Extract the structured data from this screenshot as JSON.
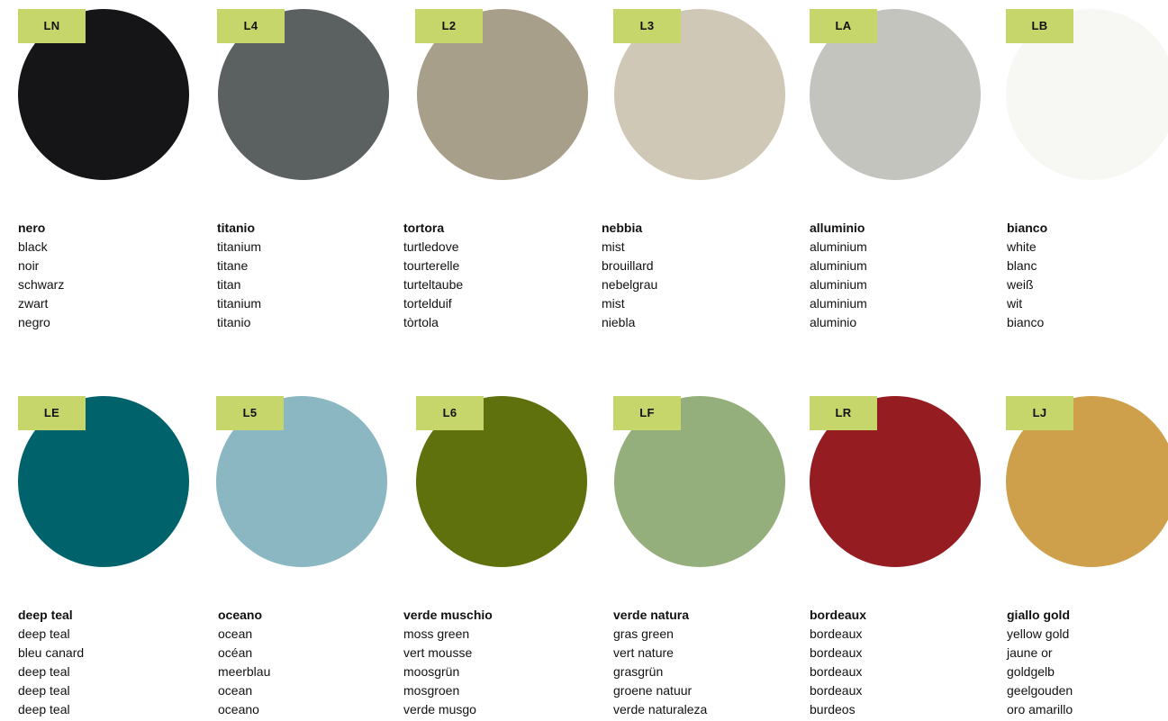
{
  "swatches": [
    {
      "code": "LN",
      "color": "#151517",
      "names": [
        "nero",
        "black",
        "noir",
        "schwarz",
        "zwart",
        "negro"
      ]
    },
    {
      "code": "L4",
      "color": "#5b6060",
      "names": [
        "titanio",
        "titanium",
        "titane",
        "titan",
        "titanium",
        "titanio"
      ]
    },
    {
      "code": "L2",
      "color": "#a79f8a",
      "names": [
        "tortora",
        "turtledove",
        "tourterelle",
        "turteltaube",
        "tortelduif",
        "tòrtola"
      ]
    },
    {
      "code": "L3",
      "color": "#d0c8b6",
      "names": [
        "nebbia",
        "mist",
        "brouillard",
        "nebelgrau",
        "mist",
        "niebla"
      ]
    },
    {
      "code": "LA",
      "color": "#c4c4be",
      "names": [
        "alluminio",
        "aluminium",
        "aluminium",
        "aluminium",
        "aluminium",
        "aluminio"
      ]
    },
    {
      "code": "LB",
      "color": "#f7f8f3",
      "names": [
        "bianco",
        "white",
        "blanc",
        "weiß",
        "wit",
        "bianco"
      ]
    },
    {
      "code": "LE",
      "color": "#00636c",
      "names": [
        "deep teal",
        "deep teal",
        "bleu canard",
        "deep teal",
        "deep teal",
        "deep teal"
      ]
    },
    {
      "code": "L5",
      "color": "#8bb7c3",
      "names": [
        "oceano",
        "ocean",
        "océan",
        "meerblau",
        "ocean",
        "oceano"
      ]
    },
    {
      "code": "L6",
      "color": "#5f710c",
      "names": [
        "verde muschio",
        "moss green",
        "vert mousse",
        "moosgrün",
        "mosgroen",
        "verde musgo"
      ]
    },
    {
      "code": "LF",
      "color": "#94af7c",
      "names": [
        "verde natura",
        "gras green",
        "vert nature",
        "grasgrün",
        "groene natuur",
        "verde naturaleza"
      ]
    },
    {
      "code": "LR",
      "color": "#951d21",
      "names": [
        "bordeaux",
        "bordeaux",
        "bordeaux",
        "bordeaux",
        "bordeaux",
        "burdeos"
      ]
    },
    {
      "code": "LJ",
      "color": "#cfa04b",
      "names": [
        "giallo gold",
        "yellow gold",
        "jaune or",
        "goldgelb",
        "geelgouden",
        "oro amarillo"
      ]
    }
  ]
}
